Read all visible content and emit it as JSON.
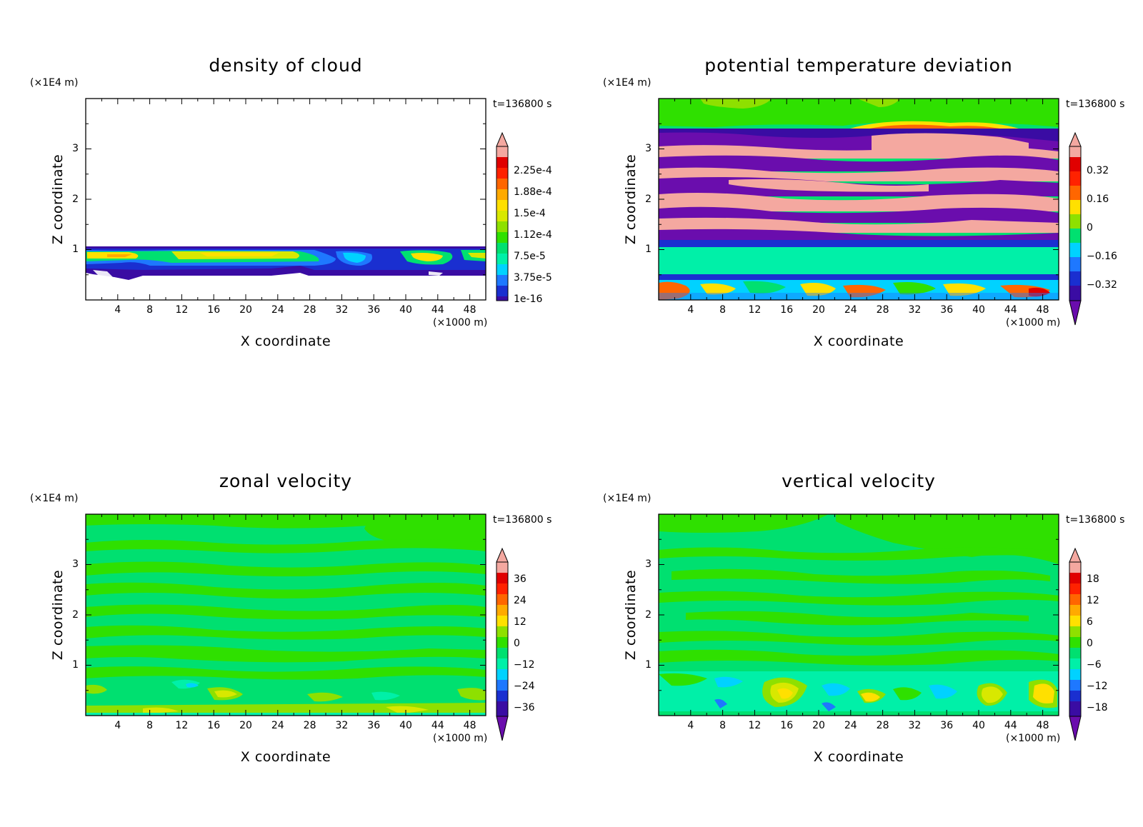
{
  "chart_data": [
    {
      "type": "heatmap",
      "title": "density of cloud",
      "xlabel": "X coordinate",
      "ylabel": "Z coordinate",
      "x_unit": "(×1000 m)",
      "y_unit": "(×1E4 m)",
      "time_label": "t=136800 s",
      "x_range": [
        0,
        50
      ],
      "y_range": [
        0,
        4
      ],
      "x_ticks": [
        4,
        8,
        12,
        16,
        20,
        24,
        28,
        32,
        36,
        40,
        44,
        48
      ],
      "y_ticks": [
        1,
        2,
        3
      ],
      "colorbar": {
        "levels": [
          "2.25e-4",
          "1.88e-4",
          "1.5e-4",
          "1.12e-4",
          "7.5e-5",
          "3.75e-5",
          "1e-16"
        ],
        "level_values": [
          0.000225,
          0.000188,
          0.00015,
          0.000112,
          7.5e-05,
          3.75e-05,
          1e-16
        ]
      },
      "description_fields": {
        "cloud_layer_z_range": [
          0.5,
          1.07
        ]
      }
    },
    {
      "type": "heatmap",
      "title": "potential temperature deviation",
      "xlabel": "X coordinate",
      "ylabel": "Z coordinate",
      "x_unit": "(×1000 m)",
      "y_unit": "(×1E4 m)",
      "time_label": "t=136800 s",
      "x_range": [
        0,
        50
      ],
      "y_range": [
        0,
        4
      ],
      "x_ticks": [
        4,
        8,
        12,
        16,
        20,
        24,
        28,
        32,
        36,
        40,
        44,
        48
      ],
      "y_ticks": [
        1,
        2,
        3
      ],
      "colorbar": {
        "levels": [
          "0.32",
          "0.16",
          "0",
          "−0.16",
          "−0.32"
        ],
        "level_values": [
          0.32,
          0.16,
          0,
          -0.16,
          -0.32
        ]
      }
    },
    {
      "type": "heatmap",
      "title": "zonal velocity",
      "xlabel": "X coordinate",
      "ylabel": "Z coordinate",
      "x_unit": "(×1000 m)",
      "y_unit": "(×1E4 m)",
      "time_label": "t=136800 s",
      "x_range": [
        0,
        50
      ],
      "y_range": [
        0,
        4
      ],
      "x_ticks": [
        4,
        8,
        12,
        16,
        20,
        24,
        28,
        32,
        36,
        40,
        44,
        48
      ],
      "y_ticks": [
        1,
        2,
        3
      ],
      "colorbar": {
        "levels": [
          "36",
          "24",
          "12",
          "0",
          "−12",
          "−24",
          "−36"
        ],
        "level_values": [
          36,
          24,
          12,
          0,
          -12,
          -24,
          -36
        ]
      }
    },
    {
      "type": "heatmap",
      "title": "vertical velocity",
      "xlabel": "X coordinate",
      "ylabel": "Z coordinate",
      "x_unit": "(×1000 m)",
      "y_unit": "(×1E4 m)",
      "time_label": "t=136800 s",
      "x_range": [
        0,
        50
      ],
      "y_range": [
        0,
        4
      ],
      "x_ticks": [
        4,
        8,
        12,
        16,
        20,
        24,
        28,
        32,
        36,
        40,
        44,
        48
      ],
      "y_ticks": [
        1,
        2,
        3
      ],
      "colorbar": {
        "levels": [
          "18",
          "12",
          "6",
          "0",
          "−6",
          "−12",
          "−18"
        ],
        "level_values": [
          18,
          12,
          6,
          0,
          -6,
          -12,
          -18
        ]
      }
    }
  ],
  "colormap": [
    "#6a0dad",
    "#3a0ca3",
    "#1a2fd0",
    "#1e78ff",
    "#00d2ff",
    "#00f0a8",
    "#00e070",
    "#2fe000",
    "#8ee000",
    "#d8e800",
    "#ffe000",
    "#ffaa00",
    "#ff6600",
    "#ff2200",
    "#e00000",
    "#f4a8a0"
  ]
}
